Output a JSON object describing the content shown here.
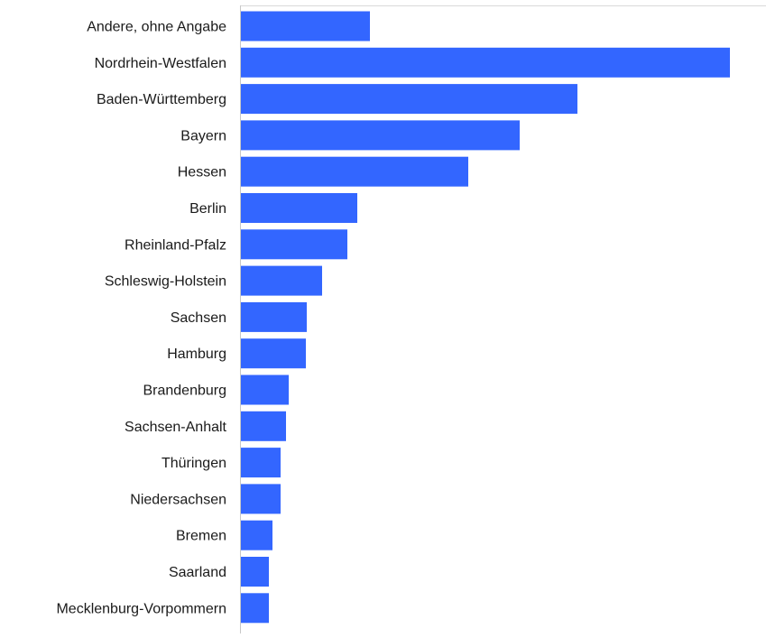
{
  "chart_data": {
    "type": "bar",
    "orientation": "horizontal",
    "title": "",
    "xlabel": "",
    "ylabel": "",
    "categories": [
      "Andere, ohne Angabe",
      "Nordrhein-Westfalen",
      "Baden-Württemberg",
      "Bayern",
      "Hessen",
      "Berlin",
      "Rheinland-Pfalz",
      "Schleswig-Holstein",
      "Sachsen",
      "Hamburg",
      "Brandenburg",
      "Sachsen-Anhalt",
      "Thüringen",
      "Niedersachsen",
      "Bremen",
      "Saarland",
      "Mecklenburg-Vorpommern"
    ],
    "values": [
      143,
      542,
      373,
      309,
      252,
      129,
      118,
      90,
      73,
      72,
      53,
      50,
      44,
      44,
      35,
      31,
      31
    ],
    "xlim": [
      0,
      582
    ],
    "grid": false,
    "legend": "none",
    "bar_color": "#3366ff",
    "axis_color": "#c8c8c8",
    "frame_color": "#d9d9d9"
  }
}
